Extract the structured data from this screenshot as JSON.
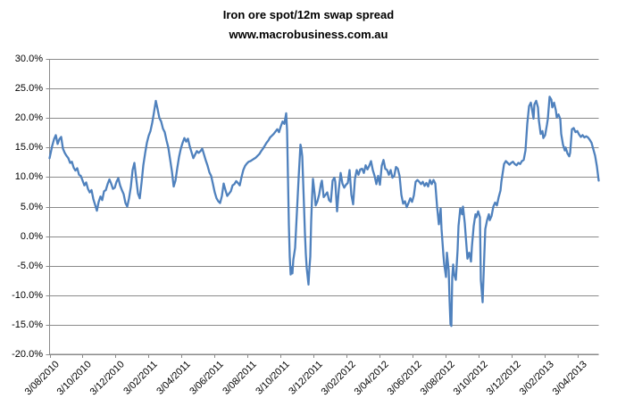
{
  "page": {
    "background": "#ffffff",
    "text_color": "#000000"
  },
  "chart_data": {
    "type": "line",
    "title": "Iron ore spot/12m swap spread",
    "subtitle": "www.macrobusiness.com.au",
    "series_name": "Iron ore spot/12m swap spread",
    "line_color": "#4F81BD",
    "gridline_color": "#8a8a8a",
    "axis_color": "#8a8a8a",
    "grid": "horizontal-only",
    "legend": "none",
    "y_unit": "%",
    "ylim": [
      -20,
      30
    ],
    "y_ticks": [
      {
        "label": "30.0%",
        "value": 30
      },
      {
        "label": "25.0%",
        "value": 25
      },
      {
        "label": "20.0%",
        "value": 20
      },
      {
        "label": "15.0%",
        "value": 15
      },
      {
        "label": "10.0%",
        "value": 10
      },
      {
        "label": "5.0%",
        "value": 5
      },
      {
        "label": "0.0%",
        "value": 0
      },
      {
        "label": "-5.0%",
        "value": -5
      },
      {
        "label": "-10.0%",
        "value": -10
      },
      {
        "label": "-15.0%",
        "value": -15
      },
      {
        "label": "-20.0%",
        "value": -20
      }
    ],
    "t_domain": [
      0,
      615
    ],
    "x_note": "t = position along time axis in axis units; ticks every 2 months from 3/08/2010",
    "x_ticks": [
      {
        "label": "3/08/2010",
        "t": 0
      },
      {
        "label": "3/10/2010",
        "t": 36.9
      },
      {
        "label": "3/12/2010",
        "t": 73.9
      },
      {
        "label": "3/02/2011",
        "t": 110.8
      },
      {
        "label": "3/04/2011",
        "t": 147.8
      },
      {
        "label": "3/06/2011",
        "t": 184.7
      },
      {
        "label": "3/08/2011",
        "t": 221.6
      },
      {
        "label": "3/10/2011",
        "t": 258.6
      },
      {
        "label": "3/12/2011",
        "t": 295.5
      },
      {
        "label": "3/02/2012",
        "t": 332.5
      },
      {
        "label": "3/04/2012",
        "t": 369.4
      },
      {
        "label": "3/06/2012",
        "t": 406.4
      },
      {
        "label": "3/08/2012",
        "t": 443.3
      },
      {
        "label": "3/10/2012",
        "t": 480.2
      },
      {
        "label": "3/12/2012",
        "t": 517.2
      },
      {
        "label": "3/02/2013",
        "t": 554.1
      },
      {
        "label": "3/04/2013",
        "t": 591.1
      }
    ],
    "points": [
      [
        0,
        13.2
      ],
      [
        3,
        15.3
      ],
      [
        5,
        16.4
      ],
      [
        7,
        17.1
      ],
      [
        9,
        15.6
      ],
      [
        11,
        16.4
      ],
      [
        13,
        16.8
      ],
      [
        15,
        14.8
      ],
      [
        17,
        14.1
      ],
      [
        19,
        13.6
      ],
      [
        21,
        13.2
      ],
      [
        23,
        12.4
      ],
      [
        25,
        12.6
      ],
      [
        27,
        11.6
      ],
      [
        29,
        11.1
      ],
      [
        31,
        11.5
      ],
      [
        33,
        10.4
      ],
      [
        35,
        10.2
      ],
      [
        37,
        9.4
      ],
      [
        39,
        8.6
      ],
      [
        41,
        9.1
      ],
      [
        43,
        8.0
      ],
      [
        45,
        7.4
      ],
      [
        47,
        7.8
      ],
      [
        49,
        6.3
      ],
      [
        51,
        5.3
      ],
      [
        53,
        4.3
      ],
      [
        55,
        5.8
      ],
      [
        57,
        6.7
      ],
      [
        59,
        6.1
      ],
      [
        61,
        7.6
      ],
      [
        63,
        7.8
      ],
      [
        65,
        8.8
      ],
      [
        67,
        9.6
      ],
      [
        69,
        8.9
      ],
      [
        71,
        8.0
      ],
      [
        73,
        8.2
      ],
      [
        75,
        9.2
      ],
      [
        77,
        9.8
      ],
      [
        79,
        8.6
      ],
      [
        81,
        7.8
      ],
      [
        83,
        7.1
      ],
      [
        85,
        5.6
      ],
      [
        87,
        5.0
      ],
      [
        89,
        6.4
      ],
      [
        91,
        8.3
      ],
      [
        93,
        11.2
      ],
      [
        95,
        12.4
      ],
      [
        97,
        9.8
      ],
      [
        99,
        7.2
      ],
      [
        101,
        6.4
      ],
      [
        103,
        9.0
      ],
      [
        105,
        12.0
      ],
      [
        107,
        14.0
      ],
      [
        109,
        15.8
      ],
      [
        111,
        17.0
      ],
      [
        113,
        17.8
      ],
      [
        115,
        19.2
      ],
      [
        117,
        21.0
      ],
      [
        119,
        22.9
      ],
      [
        121,
        21.5
      ],
      [
        123,
        20.0
      ],
      [
        125,
        19.4
      ],
      [
        127,
        18.2
      ],
      [
        129,
        17.6
      ],
      [
        131,
        16.2
      ],
      [
        133,
        15.0
      ],
      [
        135,
        13.0
      ],
      [
        137,
        11.0
      ],
      [
        139,
        8.4
      ],
      [
        141,
        9.4
      ],
      [
        143,
        11.5
      ],
      [
        145,
        13.4
      ],
      [
        147,
        14.8
      ],
      [
        149,
        15.8
      ],
      [
        151,
        16.6
      ],
      [
        153,
        16.0
      ],
      [
        155,
        16.5
      ],
      [
        157,
        15.2
      ],
      [
        159,
        14.2
      ],
      [
        161,
        13.2
      ],
      [
        163,
        13.8
      ],
      [
        165,
        14.4
      ],
      [
        167,
        14.1
      ],
      [
        169,
        14.4
      ],
      [
        171,
        14.8
      ],
      [
        173,
        13.8
      ],
      [
        175,
        12.8
      ],
      [
        177,
        11.9
      ],
      [
        179,
        10.8
      ],
      [
        181,
        10.2
      ],
      [
        183,
        8.8
      ],
      [
        185,
        7.4
      ],
      [
        187,
        6.4
      ],
      [
        189,
        5.9
      ],
      [
        191,
        5.6
      ],
      [
        193,
        6.8
      ],
      [
        195,
        8.9
      ],
      [
        197,
        7.8
      ],
      [
        199,
        6.8
      ],
      [
        201,
        7.2
      ],
      [
        203,
        7.6
      ],
      [
        205,
        8.6
      ],
      [
        207,
        8.8
      ],
      [
        209,
        9.3
      ],
      [
        211,
        9.0
      ],
      [
        213,
        8.6
      ],
      [
        215,
        10.0
      ],
      [
        217,
        11.2
      ],
      [
        219,
        11.9
      ],
      [
        221,
        12.3
      ],
      [
        223,
        12.6
      ],
      [
        225,
        12.7
      ],
      [
        227,
        12.9
      ],
      [
        229,
        13.1
      ],
      [
        231,
        13.3
      ],
      [
        233,
        13.6
      ],
      [
        235,
        13.9
      ],
      [
        237,
        14.4
      ],
      [
        239,
        14.8
      ],
      [
        241,
        15.3
      ],
      [
        243,
        15.8
      ],
      [
        245,
        16.2
      ],
      [
        247,
        16.7
      ],
      [
        249,
        17.0
      ],
      [
        251,
        17.3
      ],
      [
        253,
        17.7
      ],
      [
        255,
        18.1
      ],
      [
        257,
        17.6
      ],
      [
        259,
        18.6
      ],
      [
        261,
        19.4
      ],
      [
        263,
        19.0
      ],
      [
        265,
        20.8
      ],
      [
        266,
        18.0
      ],
      [
        267,
        10.0
      ],
      [
        268,
        2.0
      ],
      [
        269,
        -3.5
      ],
      [
        270,
        -6.5
      ],
      [
        271,
        -5.2
      ],
      [
        272,
        -6.3
      ],
      [
        273,
        -4.0
      ],
      [
        275,
        -2.0
      ],
      [
        277,
        4.0
      ],
      [
        279,
        10.0
      ],
      [
        281,
        15.5
      ],
      [
        282,
        14.8
      ],
      [
        283,
        13.5
      ],
      [
        285,
        5.0
      ],
      [
        286,
        0.5
      ],
      [
        287,
        -3.0
      ],
      [
        288,
        -5.4
      ],
      [
        290,
        -8.2
      ],
      [
        291,
        -5.5
      ],
      [
        292,
        -3.5
      ],
      [
        293,
        2.5
      ],
      [
        294,
        6.6
      ],
      [
        295,
        9.7
      ],
      [
        297,
        7.0
      ],
      [
        298,
        5.2
      ],
      [
        300,
        5.9
      ],
      [
        302,
        7.1
      ],
      [
        304,
        8.9
      ],
      [
        305,
        9.4
      ],
      [
        307,
        6.6
      ],
      [
        309,
        7.0
      ],
      [
        311,
        7.4
      ],
      [
        313,
        6.1
      ],
      [
        315,
        5.8
      ],
      [
        317,
        9.4
      ],
      [
        319,
        9.9
      ],
      [
        320,
        9.2
      ],
      [
        322,
        4.2
      ],
      [
        324,
        8.0
      ],
      [
        326,
        10.7
      ],
      [
        328,
        8.9
      ],
      [
        330,
        8.2
      ],
      [
        332,
        8.7
      ],
      [
        334,
        9.0
      ],
      [
        336,
        11.2
      ],
      [
        338,
        7.0
      ],
      [
        340,
        5.4
      ],
      [
        342,
        9.7
      ],
      [
        344,
        11.2
      ],
      [
        346,
        10.4
      ],
      [
        348,
        11.3
      ],
      [
        350,
        11.4
      ],
      [
        352,
        10.7
      ],
      [
        354,
        12.0
      ],
      [
        356,
        11.3
      ],
      [
        358,
        11.9
      ],
      [
        360,
        12.7
      ],
      [
        362,
        11.2
      ],
      [
        364,
        10.2
      ],
      [
        366,
        8.8
      ],
      [
        368,
        10.2
      ],
      [
        370,
        8.7
      ],
      [
        372,
        11.9
      ],
      [
        374,
        12.9
      ],
      [
        376,
        11.4
      ],
      [
        378,
        11.2
      ],
      [
        380,
        10.4
      ],
      [
        382,
        11.2
      ],
      [
        384,
        9.9
      ],
      [
        386,
        10.2
      ],
      [
        388,
        11.7
      ],
      [
        390,
        11.4
      ],
      [
        392,
        10.2
      ],
      [
        394,
        7.0
      ],
      [
        396,
        5.5
      ],
      [
        398,
        5.9
      ],
      [
        400,
        4.9
      ],
      [
        402,
        5.6
      ],
      [
        404,
        6.4
      ],
      [
        406,
        5.8
      ],
      [
        408,
        6.9
      ],
      [
        410,
        9.2
      ],
      [
        412,
        9.5
      ],
      [
        414,
        9.2
      ],
      [
        416,
        8.8
      ],
      [
        418,
        9.2
      ],
      [
        420,
        8.5
      ],
      [
        422,
        9.0
      ],
      [
        424,
        8.4
      ],
      [
        426,
        9.5
      ],
      [
        428,
        8.8
      ],
      [
        430,
        9.5
      ],
      [
        432,
        8.9
      ],
      [
        434,
        5.0
      ],
      [
        436,
        2.0
      ],
      [
        438,
        4.7
      ],
      [
        439,
        1.2
      ],
      [
        441,
        -3.0
      ],
      [
        442,
        -4.8
      ],
      [
        443,
        -5.8
      ],
      [
        444,
        -6.9
      ],
      [
        445,
        -2.8
      ],
      [
        447,
        -5.8
      ],
      [
        448,
        -11.0
      ],
      [
        449,
        -14.9
      ],
      [
        450,
        -15.2
      ],
      [
        451,
        -6.9
      ],
      [
        452,
        -4.8
      ],
      [
        453,
        -6.4
      ],
      [
        455,
        -7.4
      ],
      [
        457,
        -2.3
      ],
      [
        458,
        1.7
      ],
      [
        460,
        4.7
      ],
      [
        462,
        3.7
      ],
      [
        463,
        5.0
      ],
      [
        465,
        2.2
      ],
      [
        467,
        -1.8
      ],
      [
        468,
        -3.8
      ],
      [
        470,
        -2.8
      ],
      [
        472,
        -4.3
      ],
      [
        473,
        -1.8
      ],
      [
        475,
        1.7
      ],
      [
        477,
        3.7
      ],
      [
        478,
        3.2
      ],
      [
        480,
        4.2
      ],
      [
        482,
        3.2
      ],
      [
        483,
        -7.4
      ],
      [
        485,
        -11.2
      ],
      [
        487,
        -2.8
      ],
      [
        488,
        1.2
      ],
      [
        490,
        2.7
      ],
      [
        492,
        3.7
      ],
      [
        493,
        2.7
      ],
      [
        495,
        3.4
      ],
      [
        497,
        5.0
      ],
      [
        499,
        5.7
      ],
      [
        501,
        5.2
      ],
      [
        503,
        6.6
      ],
      [
        505,
        7.7
      ],
      [
        506,
        9.2
      ],
      [
        507,
        10.2
      ],
      [
        509,
        12.2
      ],
      [
        511,
        12.7
      ],
      [
        513,
        12.4
      ],
      [
        515,
        12.1
      ],
      [
        517,
        12.4
      ],
      [
        519,
        12.6
      ],
      [
        521,
        12.2
      ],
      [
        523,
        12.0
      ],
      [
        525,
        12.4
      ],
      [
        527,
        12.2
      ],
      [
        529,
        12.7
      ],
      [
        531,
        12.9
      ],
      [
        533,
        14.5
      ],
      [
        535,
        19.0
      ],
      [
        537,
        22.0
      ],
      [
        539,
        22.6
      ],
      [
        540,
        21.8
      ],
      [
        542,
        19.9
      ],
      [
        543,
        22.3
      ],
      [
        545,
        22.9
      ],
      [
        547,
        21.8
      ],
      [
        548,
        19.6
      ],
      [
        550,
        17.3
      ],
      [
        552,
        17.8
      ],
      [
        553,
        16.6
      ],
      [
        555,
        17.1
      ],
      [
        557,
        18.8
      ],
      [
        558,
        19.8
      ],
      [
        560,
        23.6
      ],
      [
        562,
        23.1
      ],
      [
        563,
        21.8
      ],
      [
        565,
        22.6
      ],
      [
        567,
        21.3
      ],
      [
        568,
        20.1
      ],
      [
        570,
        20.6
      ],
      [
        572,
        19.8
      ],
      [
        573,
        17.3
      ],
      [
        575,
        15.5
      ],
      [
        577,
        14.5
      ],
      [
        578,
        15.0
      ],
      [
        580,
        14.0
      ],
      [
        582,
        13.5
      ],
      [
        583,
        14.1
      ],
      [
        585,
        18.1
      ],
      [
        587,
        18.3
      ],
      [
        589,
        17.6
      ],
      [
        591,
        17.8
      ],
      [
        593,
        17.2
      ],
      [
        595,
        16.8
      ],
      [
        597,
        17.1
      ],
      [
        599,
        16.7
      ],
      [
        601,
        16.9
      ],
      [
        603,
        16.7
      ],
      [
        605,
        16.3
      ],
      [
        607,
        15.8
      ],
      [
        609,
        14.7
      ],
      [
        611,
        13.6
      ],
      [
        613,
        11.8
      ],
      [
        615,
        9.4
      ]
    ]
  }
}
